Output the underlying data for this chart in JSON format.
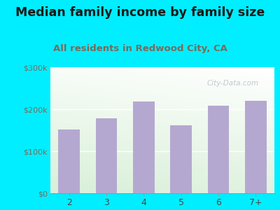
{
  "title": "Median family income by family size",
  "subtitle": "All residents in Redwood City, CA",
  "categories": [
    "2",
    "3",
    "4",
    "5",
    "6",
    "7+"
  ],
  "values": [
    152000,
    178000,
    218000,
    162000,
    208000,
    220000
  ],
  "bar_color": "#b5a8d0",
  "title_fontsize": 12.5,
  "subtitle_fontsize": 9.5,
  "subtitle_color": "#7a6a5a",
  "title_color": "#1a1a1a",
  "ylim": [
    0,
    300000
  ],
  "yticks": [
    0,
    100000,
    200000,
    300000
  ],
  "ytick_labels": [
    "$0",
    "$100k",
    "$200k",
    "$300k"
  ],
  "bg_outer": "#00eeff",
  "watermark": "City-Data.com",
  "tick_color": "#7a6a5a",
  "xlabel_color": "#444444"
}
